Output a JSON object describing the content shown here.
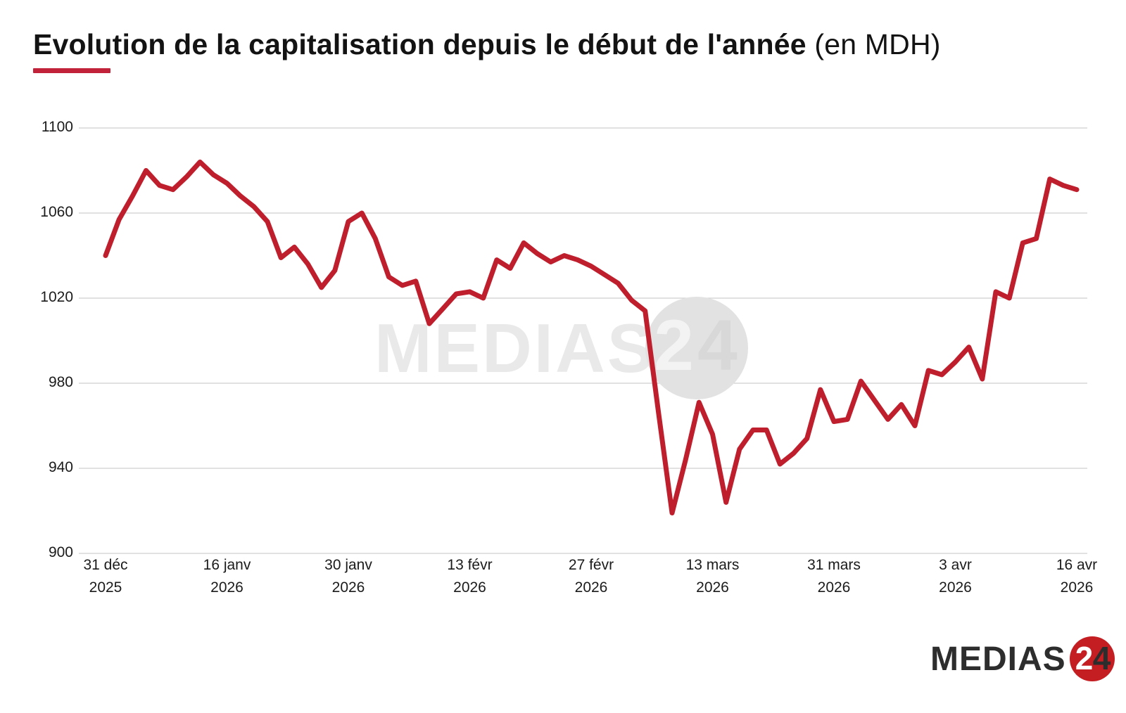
{
  "title": {
    "main": "Evolution de la capitalisation depuis le début de l'année ",
    "unit": "(en MDH)"
  },
  "colors": {
    "line": "#bf1f2d",
    "accent_bar": "#c2223a",
    "grid": "#cfcfcf",
    "logo_red": "#c41e22"
  },
  "watermark": {
    "text": "MEDIAS",
    "digit_2": "2",
    "digit_4": "4"
  },
  "logo": {
    "text": "MEDIAS",
    "digit_2": "2",
    "digit_4": "4"
  },
  "chart_data": {
    "type": "line",
    "title": "Evolution de la capitalisation depuis le début de l'année (en MDH)",
    "xlabel": "",
    "ylabel": "",
    "ylim": [
      900,
      1100
    ],
    "grid": "horizontal",
    "legend": "none",
    "y_ticks": [
      1100,
      1060,
      1020,
      980,
      940,
      900
    ],
    "x_tick_indices": [
      0,
      9,
      18,
      27,
      36,
      45,
      54,
      63,
      72
    ],
    "x_tick_labels": [
      [
        "31 déc",
        "2025"
      ],
      [
        "16 janv",
        "2026"
      ],
      [
        "30 janv",
        "2026"
      ],
      [
        "13 févr",
        "2026"
      ],
      [
        "27 févr",
        "2026"
      ],
      [
        "13 mars",
        "2026"
      ],
      [
        "31 mars",
        "2026"
      ],
      [
        "3 avr",
        "2026"
      ],
      [
        "16 avr",
        "2026"
      ]
    ],
    "values": [
      1040,
      1057,
      1068,
      1080,
      1073,
      1071,
      1077,
      1084,
      1078,
      1074,
      1068,
      1063,
      1056,
      1039,
      1044,
      1036,
      1025,
      1033,
      1056,
      1060,
      1048,
      1030,
      1026,
      1028,
      1008,
      1015,
      1022,
      1023,
      1020,
      1038,
      1034,
      1046,
      1041,
      1037,
      1040,
      1038,
      1035,
      1031,
      1027,
      1019,
      1014,
      966,
      919,
      944,
      971,
      956,
      924,
      949,
      958,
      958,
      942,
      947,
      954,
      977,
      962,
      963,
      981,
      972,
      963,
      970,
      960,
      986,
      984,
      990,
      997,
      982,
      1023,
      1020,
      1046,
      1048,
      1076,
      1073,
      1071
    ]
  }
}
